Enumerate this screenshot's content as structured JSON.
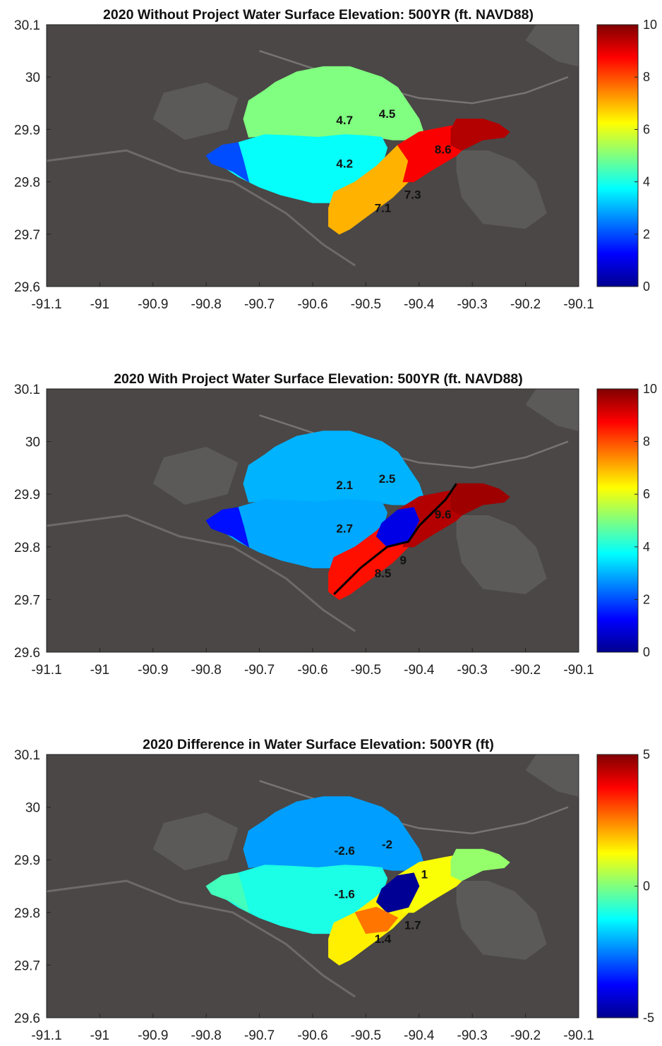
{
  "chart_data": [
    {
      "type": "heatmap",
      "title": "2020 Without Project Water Surface Elevation: 500YR (ft. NAVD88)",
      "xlabel": "",
      "ylabel": "",
      "xlim": [
        -91.1,
        -90.1
      ],
      "ylim": [
        29.6,
        30.1
      ],
      "xticks": [
        "-91.1",
        "-91",
        "-90.9",
        "-90.8",
        "-90.7",
        "-90.6",
        "-90.5",
        "-90.4",
        "-90.3",
        "-90.2",
        "-90.1"
      ],
      "yticks": [
        "29.6",
        "29.7",
        "29.8",
        "29.9",
        "30",
        "30.1"
      ],
      "colorbar": {
        "min": 0,
        "max": 10,
        "ticks": [
          "0",
          "2",
          "4",
          "6",
          "8",
          "10"
        ],
        "colormap": "jet"
      },
      "annotations": [
        {
          "label": "4.7",
          "x": -90.54,
          "y": 29.918
        },
        {
          "label": "4.5",
          "x": -90.46,
          "y": 29.93
        },
        {
          "label": "4.2",
          "x": -90.54,
          "y": 29.835
        },
        {
          "label": "8.6",
          "x": -90.355,
          "y": 29.862
        },
        {
          "label": "7.3",
          "x": -90.412,
          "y": 29.776
        },
        {
          "label": "7.1",
          "x": -90.468,
          "y": 29.75
        }
      ],
      "regions": [
        {
          "name": "north basin",
          "value": 5.0
        },
        {
          "name": "west basin",
          "value": 3.8
        },
        {
          "name": "west tail",
          "value": 2.0
        },
        {
          "name": "south strip",
          "value": 7.0
        },
        {
          "name": "east strip",
          "value": 8.8
        },
        {
          "name": "east lobe",
          "value": 9.5
        }
      ]
    },
    {
      "type": "heatmap",
      "title": "2020 With Project Water Surface Elevation: 500YR (ft. NAVD88)",
      "xlabel": "",
      "ylabel": "",
      "xlim": [
        -91.1,
        -90.1
      ],
      "ylim": [
        29.6,
        30.1
      ],
      "xticks": [
        "-91.1",
        "-91",
        "-90.9",
        "-90.8",
        "-90.7",
        "-90.6",
        "-90.5",
        "-90.4",
        "-90.3",
        "-90.2",
        "-90.1"
      ],
      "yticks": [
        "29.6",
        "29.7",
        "29.8",
        "29.9",
        "30",
        "30.1"
      ],
      "colorbar": {
        "min": 0,
        "max": 10,
        "ticks": [
          "0",
          "2",
          "4",
          "6",
          "8",
          "10"
        ],
        "colormap": "jet"
      },
      "annotations": [
        {
          "label": "2.1",
          "x": -90.54,
          "y": 29.918
        },
        {
          "label": "2.5",
          "x": -90.46,
          "y": 29.93
        },
        {
          "label": "2.7",
          "x": -90.54,
          "y": 29.835
        },
        {
          "label": "9.6",
          "x": -90.355,
          "y": 29.862
        },
        {
          "label": "9",
          "x": -90.43,
          "y": 29.775
        },
        {
          "label": "8.5",
          "x": -90.468,
          "y": 29.75
        }
      ],
      "regions": [
        {
          "name": "north basin",
          "value": 3.0
        },
        {
          "name": "west basin",
          "value": 2.9
        },
        {
          "name": "west tail",
          "value": 1.4
        },
        {
          "name": "south strip",
          "value": 8.6
        },
        {
          "name": "east strip",
          "value": 9.5
        },
        {
          "name": "east lobe",
          "value": 9.7
        },
        {
          "name": "pocket",
          "value": 1.0
        }
      ]
    },
    {
      "type": "heatmap",
      "title": "2020 Difference in Water Surface Elevation: 500YR (ft)",
      "xlabel": "",
      "ylabel": "",
      "xlim": [
        -91.1,
        -90.1
      ],
      "ylim": [
        29.6,
        30.1
      ],
      "xticks": [
        "-91.1",
        "-91",
        "-90.9",
        "-90.8",
        "-90.7",
        "-90.6",
        "-90.5",
        "-90.4",
        "-90.3",
        "-90.2",
        "-90.1"
      ],
      "yticks": [
        "29.6",
        "29.7",
        "29.8",
        "29.9",
        "30",
        "30.1"
      ],
      "colorbar": {
        "min": -5,
        "max": 5,
        "ticks": [
          "-5",
          "0",
          "5"
        ],
        "colormap": "jet"
      },
      "annotations": [
        {
          "label": "-2.6",
          "x": -90.54,
          "y": 29.918
        },
        {
          "label": "-2",
          "x": -90.46,
          "y": 29.93
        },
        {
          "label": "-1.6",
          "x": -90.54,
          "y": 29.835
        },
        {
          "label": "1",
          "x": -90.39,
          "y": 29.873
        },
        {
          "label": "1.7",
          "x": -90.412,
          "y": 29.776
        },
        {
          "label": "1.4",
          "x": -90.468,
          "y": 29.75
        }
      ],
      "regions": [
        {
          "name": "north basin",
          "value": -2.2
        },
        {
          "name": "west basin",
          "value": -1.0
        },
        {
          "name": "west tail",
          "value": -0.6
        },
        {
          "name": "south strip",
          "value": 1.4
        },
        {
          "name": "east strip",
          "value": 1.2
        },
        {
          "name": "east lobe",
          "value": 0.2
        },
        {
          "name": "pocket",
          "value": -4.8
        },
        {
          "name": "orange patch",
          "value": 2.6
        }
      ]
    }
  ]
}
